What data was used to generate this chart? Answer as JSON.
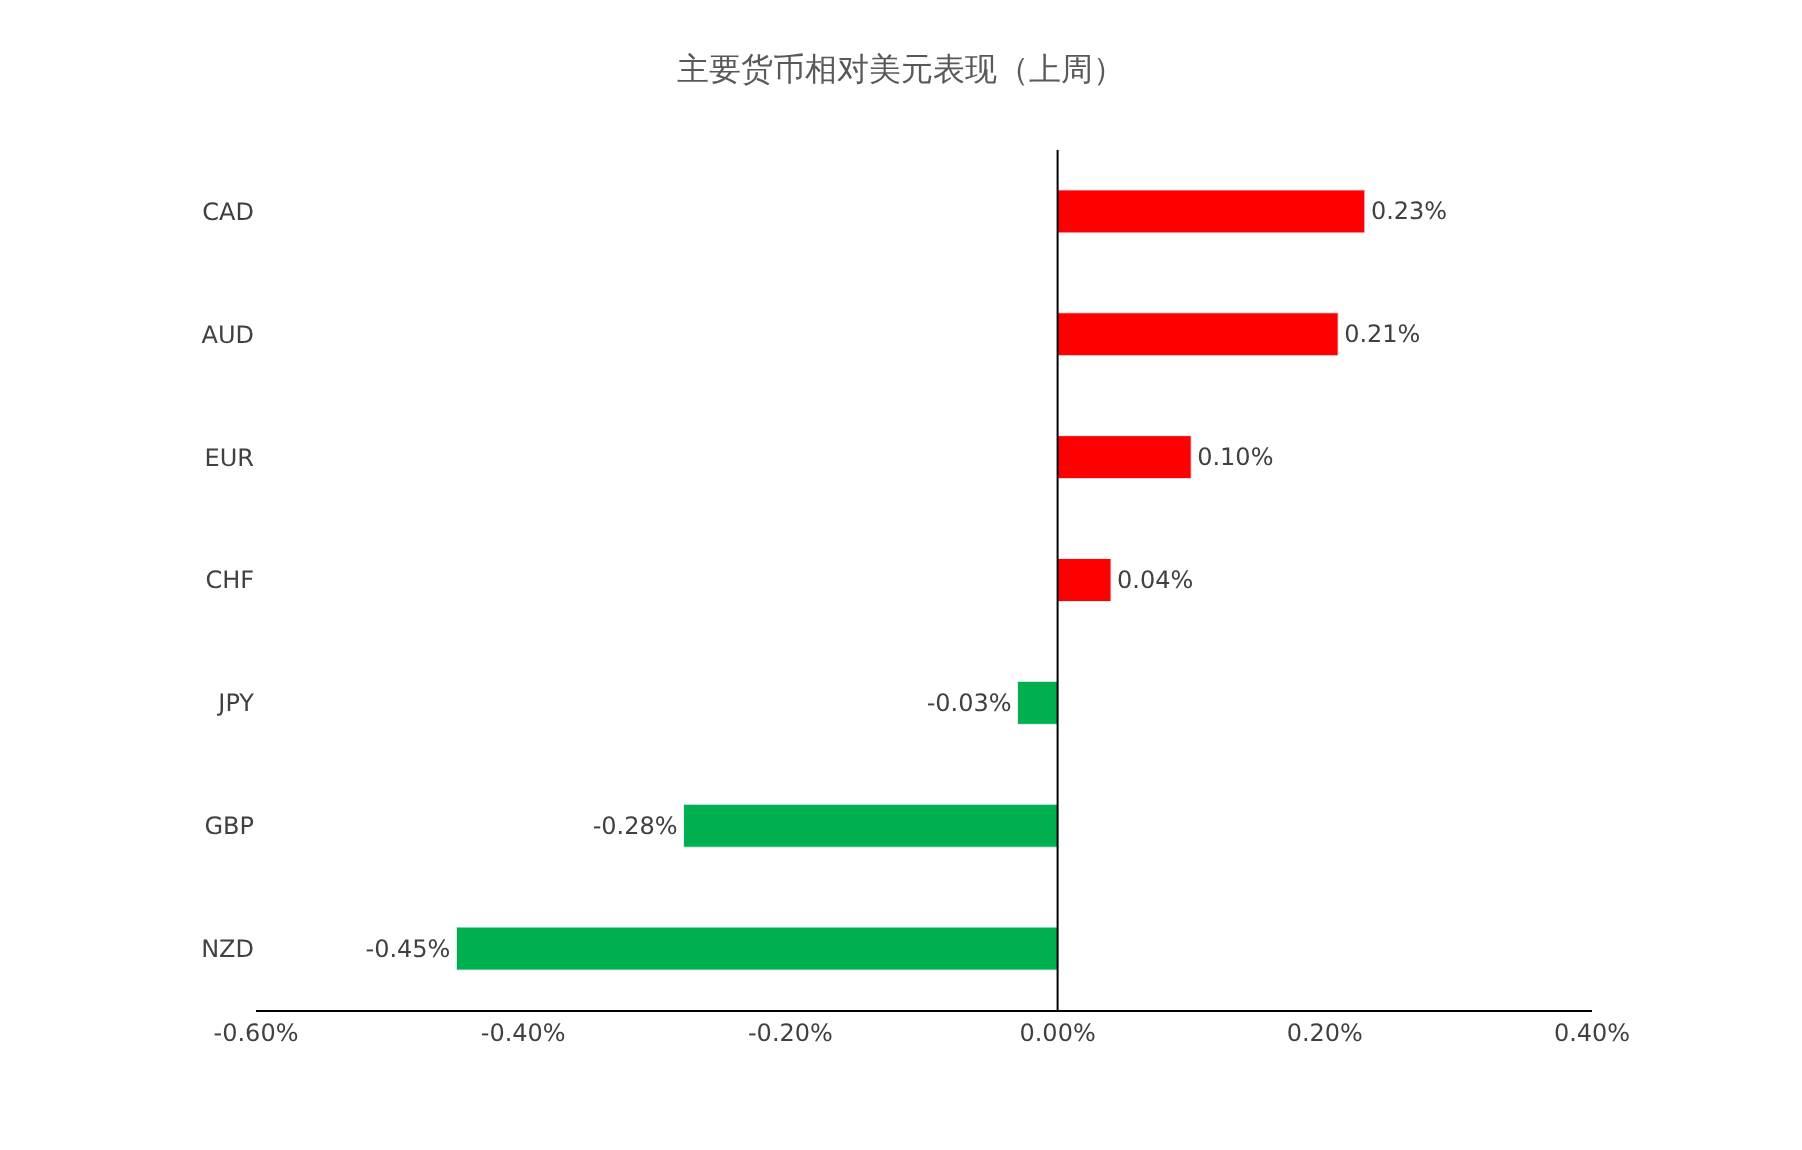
{
  "chart_data": {
    "type": "bar",
    "orientation": "horizontal",
    "title": "主要货币相对美元表现（上周）",
    "categories": [
      "CAD",
      "AUD",
      "EUR",
      "CHF",
      "JPY",
      "GBP",
      "NZD"
    ],
    "values": [
      0.23,
      0.21,
      0.1,
      0.04,
      -0.03,
      -0.28,
      -0.45
    ],
    "colors": [
      "#ff0000",
      "#ff0000",
      "#ff0000",
      "#ff0000",
      "#00b050",
      "#00b050",
      "#00b050"
    ],
    "value_labels": [
      "0.23%",
      "0.21%",
      "0.10%",
      "0.04%",
      "-0.03%",
      "-0.28%",
      "-0.45%"
    ],
    "xlim": [
      -0.6,
      0.4
    ],
    "xticks": [
      {
        "value": -0.6,
        "label": "-0.60%"
      },
      {
        "value": -0.4,
        "label": "-0.40%"
      },
      {
        "value": -0.2,
        "label": "-0.20%"
      },
      {
        "value": 0,
        "label": "0.00%"
      },
      {
        "value": 0.2,
        "label": "0.20%"
      },
      {
        "value": 0.4,
        "label": "0.40%"
      }
    ],
    "ref_lines": [
      {
        "axis": "x",
        "value": 0,
        "color": "#000000"
      }
    ],
    "legend": false
  }
}
